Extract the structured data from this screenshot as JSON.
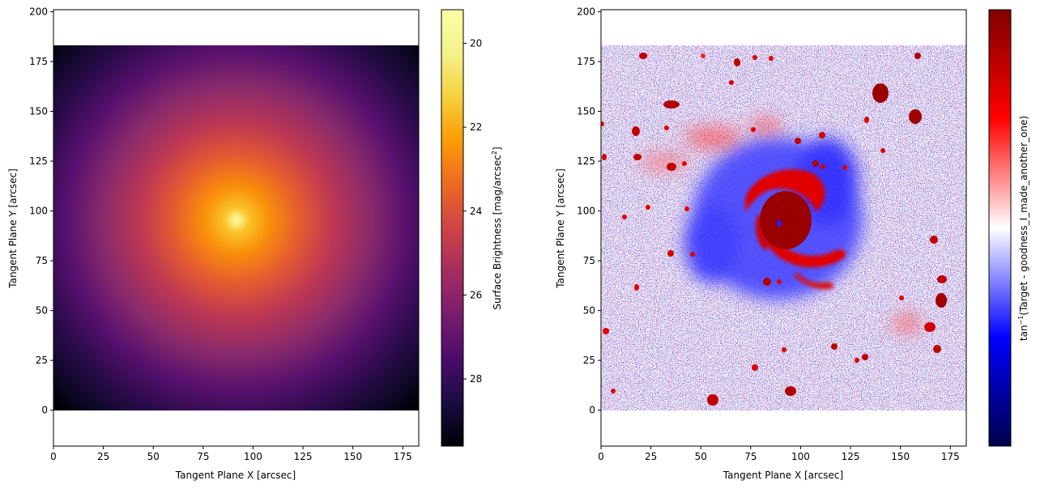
{
  "chart_data": [
    {
      "type": "heatmap",
      "title": "",
      "xlabel": "Tangent Plane X [arcsec]",
      "ylabel": "Tangent Plane Y [arcsec]",
      "xlim": [
        0,
        183
      ],
      "ylim": [
        -18,
        201
      ],
      "image_extent": {
        "x": [
          0,
          183
        ],
        "y": [
          0,
          183
        ]
      },
      "x_ticks": [
        0,
        25,
        50,
        75,
        100,
        125,
        150,
        175
      ],
      "y_ticks": [
        0,
        25,
        50,
        75,
        100,
        125,
        150,
        175,
        200
      ],
      "model_center": {
        "x": 92,
        "y": 95
      },
      "colormap": "inferno",
      "colorbar": {
        "label_prefix": "Surface Brightness [mag/arcsec",
        "label_sup": "2",
        "label_suffix": "]",
        "range": [
          29.6,
          19.2
        ],
        "ticks": [
          20,
          22,
          24,
          26,
          28
        ]
      }
    },
    {
      "type": "heatmap",
      "title": "",
      "xlabel": "Tangent Plane X [arcsec]",
      "ylabel": "Tangent Plane Y [arcsec]",
      "xlim": [
        0,
        183
      ],
      "ylim": [
        -18,
        201
      ],
      "image_extent": {
        "x": [
          0,
          183
        ],
        "y": [
          0,
          183
        ]
      },
      "x_ticks": [
        0,
        25,
        50,
        75,
        100,
        125,
        150,
        175
      ],
      "y_ticks": [
        0,
        25,
        50,
        75,
        100,
        125,
        150,
        175,
        200
      ],
      "galaxy_center": {
        "x": 90,
        "y": 94
      },
      "colormap": "seismic",
      "colorbar": {
        "label_prefix": "tan",
        "label_sup": "−1",
        "label_suffix": "(Target - goodness_I_made_another_one)",
        "ticks": []
      }
    }
  ]
}
